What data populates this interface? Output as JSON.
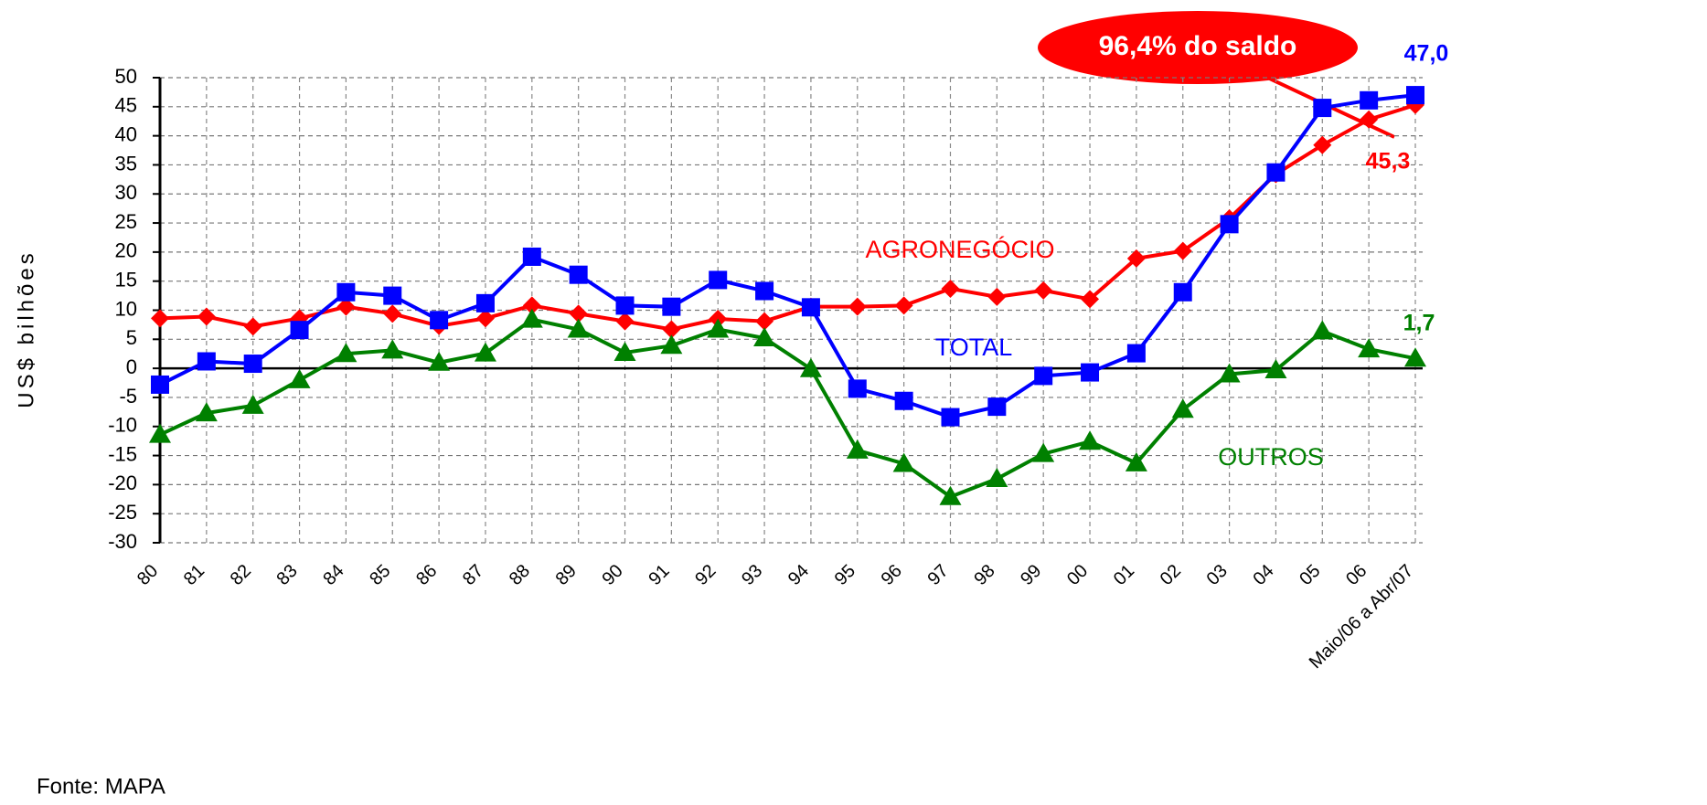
{
  "chart_data": {
    "type": "line",
    "ylabel": "US$ bilhões",
    "source": "Fonte: MAPA",
    "annotation": "96,4% do saldo",
    "categories": [
      "80",
      "81",
      "82",
      "83",
      "84",
      "85",
      "86",
      "87",
      "88",
      "89",
      "90",
      "91",
      "92",
      "93",
      "94",
      "95",
      "96",
      "97",
      "98",
      "99",
      "00",
      "01",
      "02",
      "03",
      "04",
      "05",
      "06",
      "Maio/06 a Abr/07"
    ],
    "series": [
      {
        "name": "AGRONEGÓCIO",
        "color": "#ff0000",
        "marker": "diamond",
        "values": [
          8.6,
          8.9,
          7.2,
          8.6,
          10.6,
          9.4,
          7.3,
          8.6,
          10.8,
          9.4,
          8.1,
          6.7,
          8.5,
          8.1,
          10.6,
          10.6,
          10.8,
          13.7,
          12.3,
          13.4,
          11.9,
          18.9,
          20.2,
          25.8,
          33.4,
          38.4,
          42.8,
          45.3
        ],
        "value_labels": [
          null,
          null,
          null,
          null,
          null,
          null,
          null,
          null,
          null,
          null,
          null,
          null,
          null,
          null,
          null,
          null,
          null,
          null,
          null,
          null,
          null,
          null,
          null,
          null,
          null,
          null,
          null,
          "45,3"
        ]
      },
      {
        "name": "TOTAL",
        "color": "#0000ff",
        "marker": "square",
        "values": [
          -2.8,
          1.2,
          0.8,
          6.6,
          13.1,
          12.5,
          8.3,
          11.2,
          19.2,
          16.1,
          10.8,
          10.6,
          15.2,
          13.3,
          10.5,
          -3.5,
          -5.6,
          -8.4,
          -6.6,
          -1.3,
          -0.7,
          2.6,
          13.1,
          24.8,
          33.7,
          44.8,
          46.1,
          47.0
        ],
        "value_labels": [
          null,
          null,
          null,
          null,
          null,
          null,
          null,
          null,
          null,
          null,
          null,
          null,
          null,
          null,
          null,
          null,
          null,
          null,
          null,
          null,
          null,
          null,
          null,
          null,
          null,
          null,
          null,
          "47,0"
        ]
      },
      {
        "name": "OUTROS",
        "color": "#008000",
        "marker": "triangle",
        "values": [
          -11.4,
          -7.7,
          -6.4,
          -2.0,
          2.5,
          3.1,
          1.0,
          2.6,
          8.4,
          6.7,
          2.7,
          3.9,
          6.7,
          5.2,
          -0.1,
          -14.1,
          -16.4,
          -22.1,
          -19.0,
          -14.7,
          -12.6,
          -16.3,
          -7.1,
          -1.0,
          -0.3,
          6.4,
          3.3,
          1.7
        ],
        "value_labels": [
          null,
          null,
          null,
          null,
          null,
          null,
          null,
          null,
          null,
          null,
          null,
          null,
          null,
          null,
          null,
          null,
          null,
          null,
          null,
          null,
          null,
          null,
          null,
          null,
          null,
          null,
          null,
          "1,7"
        ]
      }
    ],
    "ylim": [
      -30,
      50
    ],
    "yticks": [
      50,
      45,
      40,
      35,
      30,
      25,
      20,
      15,
      10,
      5,
      0,
      -5,
      -10,
      -15,
      -20,
      -25,
      -30
    ],
    "grid": true
  }
}
